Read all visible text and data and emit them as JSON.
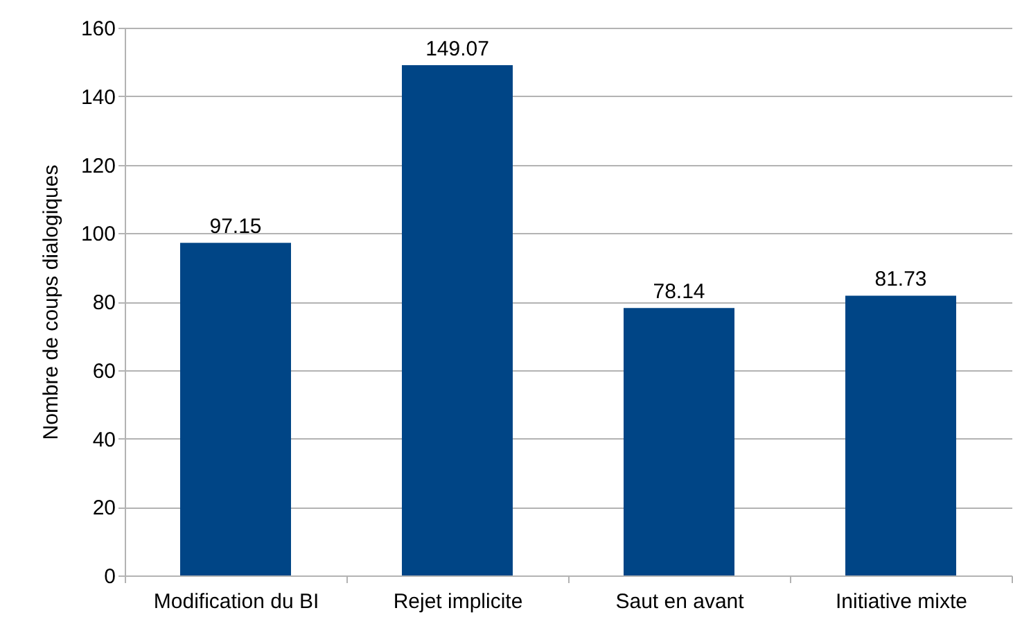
{
  "chart_data": {
    "type": "bar",
    "ylabel": "Nombre de coups dialogiques",
    "categories": [
      "Modification du BI",
      "Rejet implicite",
      "Saut en avant",
      "Initiative mixte"
    ],
    "values": [
      97.15,
      149.07,
      78.14,
      81.73
    ],
    "color": "#004586",
    "ylim": [
      0,
      160
    ],
    "yticks": [
      0,
      20,
      40,
      60,
      80,
      100,
      120,
      140,
      160
    ],
    "grid": "y",
    "data_labels": true
  }
}
